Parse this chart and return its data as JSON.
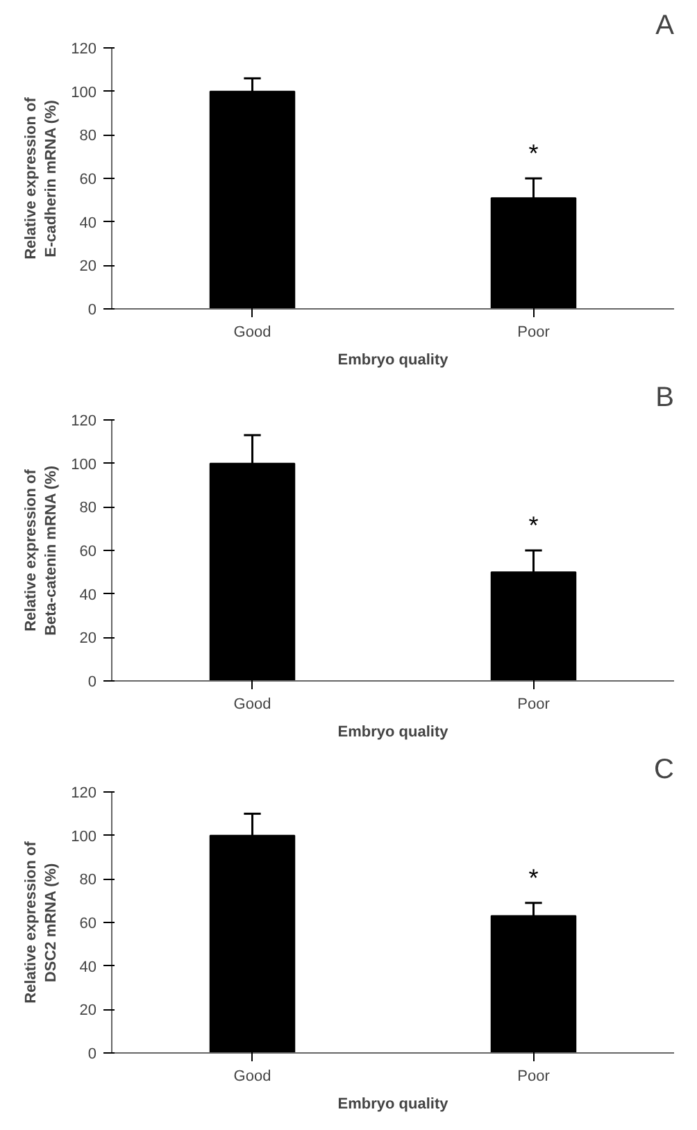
{
  "chart_data": [
    {
      "type": "bar",
      "title": "A",
      "xlabel": "Embryo quality",
      "ylabel": "Relative expression of\nE-cadherin mRNA (%)",
      "categories": [
        "Good",
        "Poor"
      ],
      "values": [
        100,
        51
      ],
      "errors": [
        [
          100,
          106
        ],
        [
          51,
          60
        ]
      ],
      "color": "#000000",
      "ylim": [
        0,
        120
      ],
      "yticks": [
        0,
        20,
        40,
        60,
        80,
        100,
        120
      ],
      "grid": false,
      "annotations": [
        "*"
      ]
    },
    {
      "type": "bar",
      "title": "B",
      "xlabel": "Embryo quality",
      "ylabel": "Relative expression of\nBeta-catenin mRNA (%)",
      "categories": [
        "Good",
        "Poor"
      ],
      "values": [
        100,
        50
      ],
      "errors": [
        [
          100,
          113
        ],
        [
          50,
          60
        ]
      ],
      "color": "#000000",
      "ylim": [
        0,
        120
      ],
      "yticks": [
        0,
        20,
        40,
        60,
        80,
        100,
        120
      ],
      "grid": false,
      "annotations": [
        "*"
      ]
    },
    {
      "type": "bar",
      "title": "C",
      "xlabel": "Embryo quality",
      "ylabel": "Relative expression of\nDSC2 mRNA (%)",
      "categories": [
        "Good",
        "Poor"
      ],
      "values": [
        100,
        63
      ],
      "errors": [
        [
          100,
          110
        ],
        [
          63,
          69
        ]
      ],
      "color": "#000000",
      "ylim": [
        0,
        120
      ],
      "yticks": [
        0,
        20,
        40,
        60,
        80,
        100,
        120
      ],
      "grid": false,
      "annotations": [
        "*"
      ]
    }
  ]
}
